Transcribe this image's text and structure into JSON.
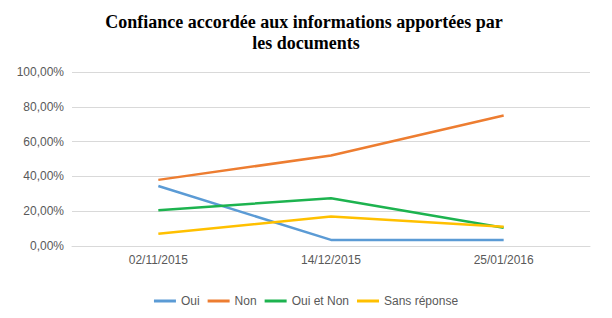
{
  "chart_data": {
    "type": "line",
    "title": "Confiance accordée aux informations apportées par les documents",
    "categories": [
      "02/11/2015",
      "14/12/2015",
      "25/01/2016"
    ],
    "series": [
      {
        "name": "Oui",
        "color": "#5b9bd5",
        "values": [
          34.5,
          3.5,
          3.5
        ]
      },
      {
        "name": "Non",
        "color": "#ed7d31",
        "values": [
          38,
          52,
          75
        ]
      },
      {
        "name": "Oui et Non",
        "color": "#1db34f",
        "values": [
          20.5,
          27.5,
          10.5
        ]
      },
      {
        "name": "Sans réponse",
        "color": "#ffc000",
        "values": [
          7,
          17,
          11
        ]
      }
    ],
    "ylim": [
      0,
      100
    ],
    "yticks": [
      {
        "value": 0,
        "label": "0,00%"
      },
      {
        "value": 20,
        "label": "20,00%"
      },
      {
        "value": 40,
        "label": "40,00%"
      },
      {
        "value": 60,
        "label": "60,00%"
      },
      {
        "value": 80,
        "label": "80,00%"
      },
      {
        "value": 100,
        "label": "100,00%"
      }
    ],
    "grid": true,
    "legend": "bottom"
  }
}
